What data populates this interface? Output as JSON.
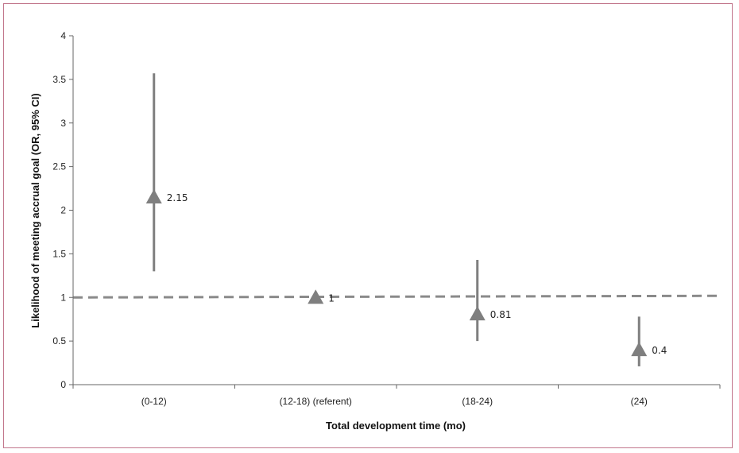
{
  "chart_data": {
    "type": "scatter",
    "title": "",
    "xlabel": "Total development time (mo)",
    "ylabel": "Likelihood of meeting accrual goal (OR, 95% CI)",
    "categories": [
      "(0-12)",
      "(12-18)  (referent)",
      "(18-24)",
      "(24)"
    ],
    "ylim": [
      0,
      4
    ],
    "yticks": [
      "0",
      "0.5",
      "1",
      "1.5",
      "2",
      "2.5",
      "3",
      "3.5",
      "4"
    ],
    "grid": false,
    "reference_line": 1,
    "points": [
      {
        "category": "(0-12)",
        "value": 2.15,
        "label": "2.15",
        "ci_low": 1.3,
        "ci_high": 3.57
      },
      {
        "category": "(12-18)  (referent)",
        "value": 1,
        "label": "1",
        "ci_low": null,
        "ci_high": null
      },
      {
        "category": "(18-24)",
        "value": 0.81,
        "label": "0.81",
        "ci_low": 0.5,
        "ci_high": 1.43
      },
      {
        "category": "(24)",
        "value": 0.4,
        "label": "0.4",
        "ci_low": 0.21,
        "ci_high": 0.78
      }
    ],
    "colors": {
      "marker": "#7f7f7f",
      "line": "#7f7f7f",
      "axis": "#666666",
      "reference": "#8a8a8a"
    }
  }
}
